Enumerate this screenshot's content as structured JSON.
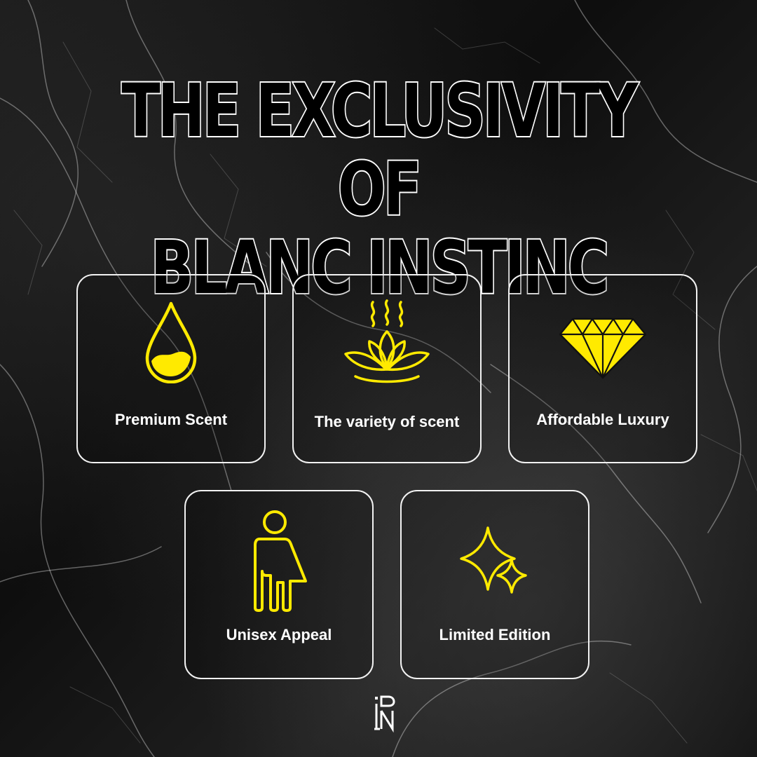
{
  "title": {
    "line1": "THE EXCLUSIVITY OF",
    "line2": "BLANC INSTINC"
  },
  "features": [
    {
      "label": "Premium Scent",
      "icon": "oil-drop-icon"
    },
    {
      "label": "The variety of scent",
      "icon": "lotus-aroma-icon"
    },
    {
      "label": "Affordable Luxury",
      "icon": "diamond-icon"
    },
    {
      "label": "Unisex Appeal",
      "icon": "unisex-person-icon"
    },
    {
      "label": "Limited Edition",
      "icon": "sparkles-icon"
    }
  ],
  "logo": {
    "icon": "brand-monogram-logo",
    "text": "BN"
  },
  "colors": {
    "accent": "#FFEA00",
    "card_border": "#F2F2F2",
    "title_fill": "#000000",
    "title_stroke": "#FFFFFF"
  }
}
